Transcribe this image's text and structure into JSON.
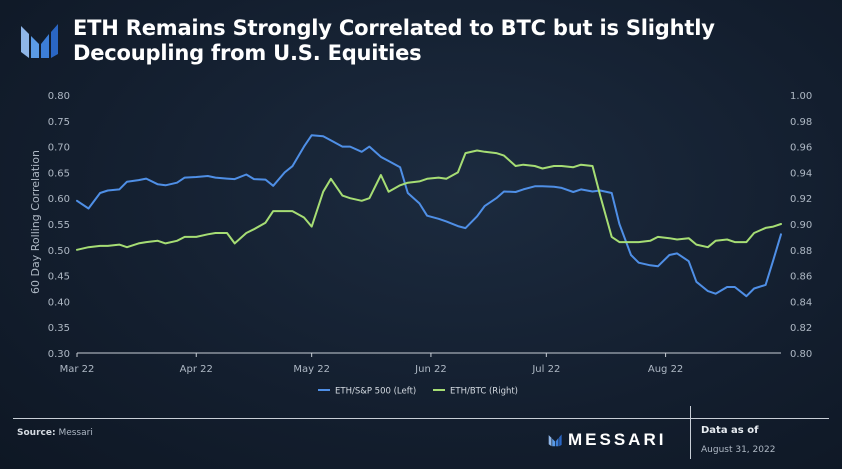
{
  "header": {
    "title": "ETH Remains Strongly Correlated to BTC but is Slightly Decoupling from U.S. Equities"
  },
  "footer": {
    "source_label": "Source:",
    "source_value": "Messari",
    "brand": "MESSARI",
    "as_of_label": "Data as of",
    "as_of_date": "August 31, 2022"
  },
  "colors": {
    "eth_sp500": "#4f8fe6",
    "eth_btc": "#a6dd74",
    "axis_text": "#aeb8c4",
    "axis_line": "#c8ced6"
  },
  "chart_data": {
    "type": "line",
    "ylabel": "60 Day Rolling Correlation",
    "xlabel": "",
    "x_ticks": [
      "Mar 22",
      "Apr 22",
      "May 22",
      "Jun 22",
      "Jul 22",
      "Aug 22"
    ],
    "ylim_left": [
      0.3,
      0.8
    ],
    "yticks_left": [
      "0.30",
      "0.35",
      "0.40",
      "0.45",
      "0.50",
      "0.55",
      "0.60",
      "0.65",
      "0.70",
      "0.75",
      "0.80"
    ],
    "ylim_right": [
      0.8,
      1.0
    ],
    "yticks_right": [
      "0.80",
      "0.82",
      "0.84",
      "0.86",
      "0.88",
      "0.90",
      "0.92",
      "0.94",
      "0.96",
      "0.98",
      "1.00"
    ],
    "legend_position": "bottom-center",
    "grid": false,
    "series": [
      {
        "name": "ETH/S&P 500 (Left)",
        "axis": "left",
        "color": "#4f8fe6",
        "x": [
          "2022-03-01",
          "2022-03-04",
          "2022-03-07",
          "2022-03-09",
          "2022-03-12",
          "2022-03-14",
          "2022-03-17",
          "2022-03-19",
          "2022-03-22",
          "2022-03-24",
          "2022-03-27",
          "2022-03-29",
          "2022-04-01",
          "2022-04-04",
          "2022-04-06",
          "2022-04-09",
          "2022-04-11",
          "2022-04-14",
          "2022-04-16",
          "2022-04-19",
          "2022-04-21",
          "2022-04-24",
          "2022-04-26",
          "2022-04-29",
          "2022-05-01",
          "2022-05-04",
          "2022-05-06",
          "2022-05-09",
          "2022-05-11",
          "2022-05-14",
          "2022-05-16",
          "2022-05-19",
          "2022-05-21",
          "2022-05-24",
          "2022-05-26",
          "2022-05-29",
          "2022-05-31",
          "2022-06-03",
          "2022-06-05",
          "2022-06-08",
          "2022-06-10",
          "2022-06-13",
          "2022-06-15",
          "2022-06-18",
          "2022-06-20",
          "2022-06-23",
          "2022-06-25",
          "2022-06-28",
          "2022-06-30",
          "2022-07-03",
          "2022-07-05",
          "2022-07-08",
          "2022-07-10",
          "2022-07-13",
          "2022-07-15",
          "2022-07-18",
          "2022-07-20",
          "2022-07-23",
          "2022-07-25",
          "2022-07-28",
          "2022-07-30",
          "2022-08-02",
          "2022-08-04",
          "2022-08-07",
          "2022-08-09",
          "2022-08-12",
          "2022-08-14",
          "2022-08-17",
          "2022-08-19",
          "2022-08-22",
          "2022-08-24",
          "2022-08-27",
          "2022-08-29",
          "2022-08-31"
        ],
        "y": [
          0.595,
          0.58,
          0.61,
          0.615,
          0.617,
          0.632,
          0.635,
          0.638,
          0.627,
          0.625,
          0.63,
          0.64,
          0.641,
          0.643,
          0.64,
          0.638,
          0.637,
          0.646,
          0.637,
          0.636,
          0.624,
          0.65,
          0.662,
          0.7,
          0.722,
          0.72,
          0.712,
          0.7,
          0.7,
          0.69,
          0.7,
          0.68,
          0.672,
          0.66,
          0.61,
          0.59,
          0.566,
          0.56,
          0.555,
          0.546,
          0.542,
          0.565,
          0.585,
          0.6,
          0.613,
          0.612,
          0.617,
          0.623,
          0.623,
          0.622,
          0.62,
          0.612,
          0.617,
          0.613,
          0.615,
          0.61,
          0.55,
          0.49,
          0.475,
          0.47,
          0.468,
          0.49,
          0.493,
          0.478,
          0.438,
          0.42,
          0.415,
          0.428,
          0.428,
          0.41,
          0.425,
          0.432,
          0.48,
          0.53
        ]
      },
      {
        "name": "ETH/BTC (Right)",
        "axis": "right",
        "color": "#a6dd74",
        "x": [
          "2022-03-01",
          "2022-03-04",
          "2022-03-07",
          "2022-03-09",
          "2022-03-12",
          "2022-03-14",
          "2022-03-17",
          "2022-03-19",
          "2022-03-22",
          "2022-03-24",
          "2022-03-27",
          "2022-03-29",
          "2022-04-01",
          "2022-04-04",
          "2022-04-06",
          "2022-04-09",
          "2022-04-11",
          "2022-04-14",
          "2022-04-16",
          "2022-04-19",
          "2022-04-21",
          "2022-04-24",
          "2022-04-26",
          "2022-04-29",
          "2022-05-01",
          "2022-05-04",
          "2022-05-06",
          "2022-05-09",
          "2022-05-11",
          "2022-05-14",
          "2022-05-16",
          "2022-05-19",
          "2022-05-21",
          "2022-05-24",
          "2022-05-26",
          "2022-05-29",
          "2022-05-31",
          "2022-06-03",
          "2022-06-05",
          "2022-06-08",
          "2022-06-10",
          "2022-06-13",
          "2022-06-15",
          "2022-06-18",
          "2022-06-20",
          "2022-06-23",
          "2022-06-25",
          "2022-06-28",
          "2022-06-30",
          "2022-07-03",
          "2022-07-05",
          "2022-07-08",
          "2022-07-10",
          "2022-07-13",
          "2022-07-15",
          "2022-07-18",
          "2022-07-20",
          "2022-07-23",
          "2022-07-25",
          "2022-07-28",
          "2022-07-30",
          "2022-08-02",
          "2022-08-04",
          "2022-08-07",
          "2022-08-09",
          "2022-08-12",
          "2022-08-14",
          "2022-08-17",
          "2022-08-19",
          "2022-08-22",
          "2022-08-24",
          "2022-08-27",
          "2022-08-29",
          "2022-08-31"
        ],
        "y": [
          0.88,
          0.882,
          0.883,
          0.883,
          0.884,
          0.882,
          0.885,
          0.886,
          0.887,
          0.885,
          0.887,
          0.89,
          0.89,
          0.892,
          0.893,
          0.893,
          0.885,
          0.893,
          0.896,
          0.901,
          0.91,
          0.91,
          0.91,
          0.905,
          0.898,
          0.925,
          0.935,
          0.922,
          0.92,
          0.918,
          0.92,
          0.938,
          0.925,
          0.93,
          0.932,
          0.933,
          0.935,
          0.936,
          0.935,
          0.94,
          0.955,
          0.957,
          0.956,
          0.955,
          0.953,
          0.945,
          0.946,
          0.945,
          0.943,
          0.945,
          0.945,
          0.944,
          0.946,
          0.945,
          0.922,
          0.89,
          0.886,
          0.886,
          0.886,
          0.887,
          0.89,
          0.889,
          0.888,
          0.889,
          0.884,
          0.882,
          0.887,
          0.888,
          0.886,
          0.886,
          0.893,
          0.897,
          0.898,
          0.9
        ]
      }
    ]
  }
}
